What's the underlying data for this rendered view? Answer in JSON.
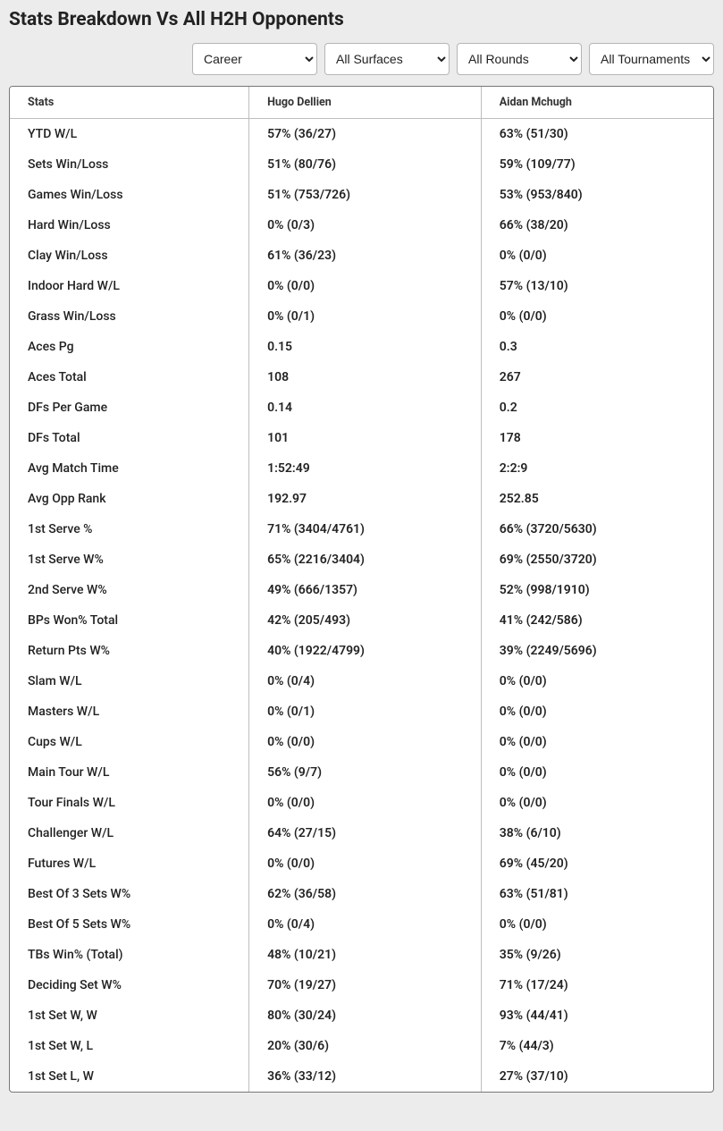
{
  "title": "Stats Breakdown Vs All H2H Opponents",
  "filters": {
    "career": {
      "selected": "Career",
      "options": [
        "Career"
      ]
    },
    "surfaces": {
      "selected": "All Surfaces",
      "options": [
        "All Surfaces"
      ]
    },
    "rounds": {
      "selected": "All Rounds",
      "options": [
        "All Rounds"
      ]
    },
    "tournaments": {
      "selected": "All Tournaments",
      "options": [
        "All Tournaments"
      ]
    }
  },
  "table": {
    "columns": [
      "Stats",
      "Hugo Dellien",
      "Aidan Mchugh"
    ],
    "rows": [
      [
        "YTD W/L",
        "57% (36/27)",
        "63% (51/30)"
      ],
      [
        "Sets Win/Loss",
        "51% (80/76)",
        "59% (109/77)"
      ],
      [
        "Games Win/Loss",
        "51% (753/726)",
        "53% (953/840)"
      ],
      [
        "Hard Win/Loss",
        "0% (0/3)",
        "66% (38/20)"
      ],
      [
        "Clay Win/Loss",
        "61% (36/23)",
        "0% (0/0)"
      ],
      [
        "Indoor Hard W/L",
        "0% (0/0)",
        "57% (13/10)"
      ],
      [
        "Grass Win/Loss",
        "0% (0/1)",
        "0% (0/0)"
      ],
      [
        "Aces Pg",
        "0.15",
        "0.3"
      ],
      [
        "Aces Total",
        "108",
        "267"
      ],
      [
        "DFs Per Game",
        "0.14",
        "0.2"
      ],
      [
        "DFs Total",
        "101",
        "178"
      ],
      [
        "Avg Match Time",
        "1:52:49",
        "2:2:9"
      ],
      [
        "Avg Opp Rank",
        "192.97",
        "252.85"
      ],
      [
        "1st Serve %",
        "71% (3404/4761)",
        "66% (3720/5630)"
      ],
      [
        "1st Serve W%",
        "65% (2216/3404)",
        "69% (2550/3720)"
      ],
      [
        "2nd Serve W%",
        "49% (666/1357)",
        "52% (998/1910)"
      ],
      [
        "BPs Won% Total",
        "42% (205/493)",
        "41% (242/586)"
      ],
      [
        "Return Pts W%",
        "40% (1922/4799)",
        "39% (2249/5696)"
      ],
      [
        "Slam W/L",
        "0% (0/4)",
        "0% (0/0)"
      ],
      [
        "Masters W/L",
        "0% (0/1)",
        "0% (0/0)"
      ],
      [
        "Cups W/L",
        "0% (0/0)",
        "0% (0/0)"
      ],
      [
        "Main Tour W/L",
        "56% (9/7)",
        "0% (0/0)"
      ],
      [
        "Tour Finals W/L",
        "0% (0/0)",
        "0% (0/0)"
      ],
      [
        "Challenger W/L",
        "64% (27/15)",
        "38% (6/10)"
      ],
      [
        "Futures W/L",
        "0% (0/0)",
        "69% (45/20)"
      ],
      [
        "Best Of 3 Sets W%",
        "62% (36/58)",
        "63% (51/81)"
      ],
      [
        "Best Of 5 Sets W%",
        "0% (0/4)",
        "0% (0/0)"
      ],
      [
        "TBs Win% (Total)",
        "48% (10/21)",
        "35% (9/26)"
      ],
      [
        "Deciding Set W%",
        "70% (19/27)",
        "71% (17/24)"
      ],
      [
        "1st Set W, W",
        "80% (30/24)",
        "93% (44/41)"
      ],
      [
        "1st Set W, L",
        "20% (30/6)",
        "7% (44/3)"
      ],
      [
        "1st Set L, W",
        "36% (33/12)",
        "27% (37/10)"
      ]
    ]
  },
  "style": {
    "background_color": "#ececec",
    "table_border_color": "#777777",
    "cell_border_color": "#bdbdbd",
    "header_font_size": 12.5,
    "body_font_size": 14,
    "title_font_size": 21
  }
}
